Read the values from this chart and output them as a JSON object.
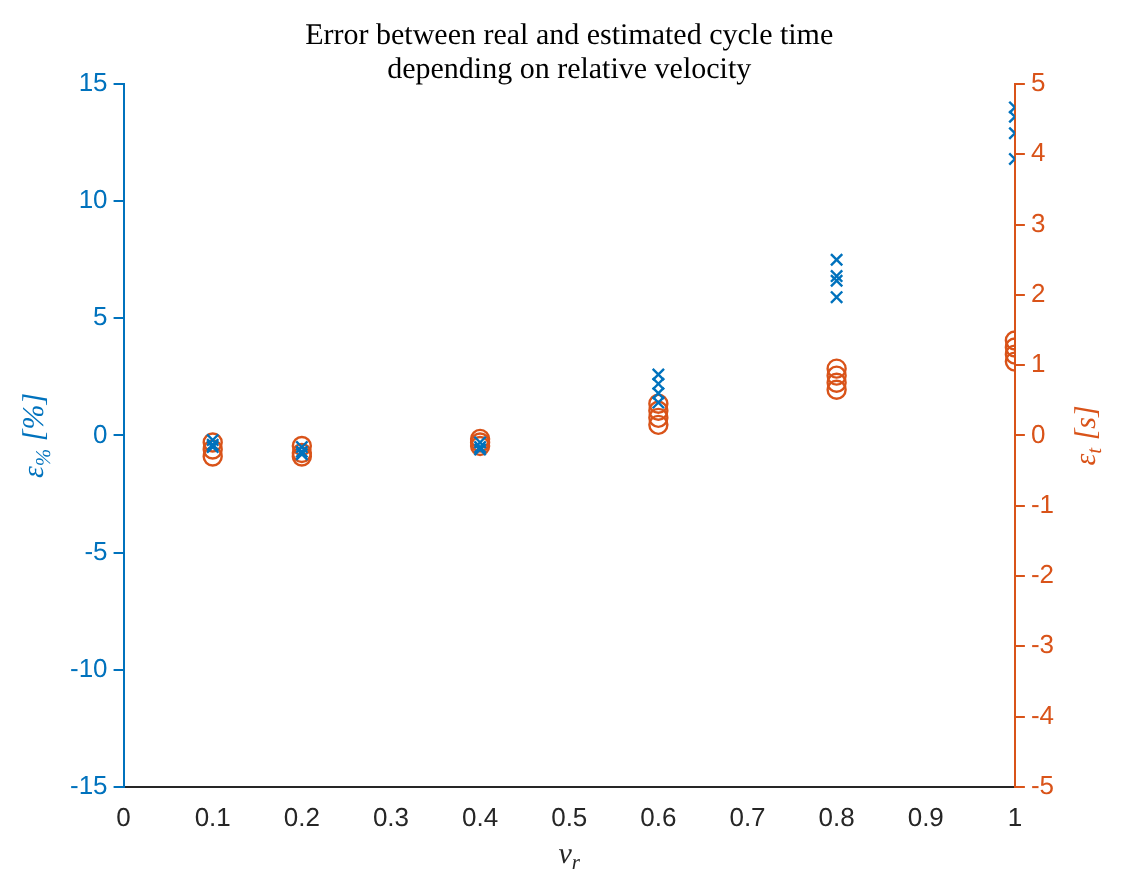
{
  "chart_data": {
    "type": "scatter",
    "title": "Error between real and estimated cycle time\ndepending on relative velocity",
    "xlabel": "v$_{r}$",
    "ylabel": "ε$_{%}$ [%]",
    "y2label": "ε$_{t}$ [s]",
    "series": [
      {
        "color": "#0072bd",
        "marker": "cross",
        "x": [
          0.1,
          0.1,
          0.1,
          0.2,
          0.2,
          0.2,
          0.4,
          0.4,
          0.4,
          0.6,
          0.6,
          0.6,
          0.6,
          0.8,
          0.8,
          0.8,
          0.8,
          1,
          1,
          1,
          1
        ],
        "values": [
          -0.2,
          -0.4,
          -0.5,
          -0.5,
          -0.7,
          -0.8,
          -0.3,
          -0.5,
          -0.6,
          1.4,
          1.8,
          2.2,
          2.6,
          5.9,
          6.6,
          6.8,
          7.5,
          11.8,
          12.9,
          13.6,
          14.0
        ]
      },
      {
        "color": "#d95319",
        "marker": "circle",
        "axis": "y2",
        "x": [
          0.1,
          0.1,
          0.1,
          0.2,
          0.2,
          0.2,
          0.4,
          0.4,
          0.4,
          0.6,
          0.6,
          0.6,
          0.6,
          0.8,
          0.8,
          0.8,
          0.8,
          1,
          1,
          1,
          1
        ],
        "values": [
          -0.1,
          -0.2,
          -0.3,
          -0.15,
          -0.25,
          -0.3,
          -0.05,
          -0.1,
          -0.15,
          0.15,
          0.25,
          0.35,
          0.45,
          0.65,
          0.75,
          0.85,
          0.95,
          1.05,
          1.15,
          1.25,
          1.35
        ]
      }
    ],
    "xlim": [
      0,
      1
    ],
    "xticks": [
      0,
      0.1,
      0.2,
      0.3,
      0.4,
      0.5,
      0.6,
      0.7,
      0.8,
      0.9,
      1
    ],
    "ylim": [
      -15,
      15
    ],
    "yticks": [
      -15,
      -10,
      -5,
      0,
      5,
      10,
      15
    ],
    "y2lim": [
      -5,
      5
    ],
    "y2ticks": [
      -5,
      -4,
      -3,
      -2,
      -1,
      0,
      1,
      2,
      3,
      4,
      5
    ],
    "grid": false,
    "legend": false
  }
}
